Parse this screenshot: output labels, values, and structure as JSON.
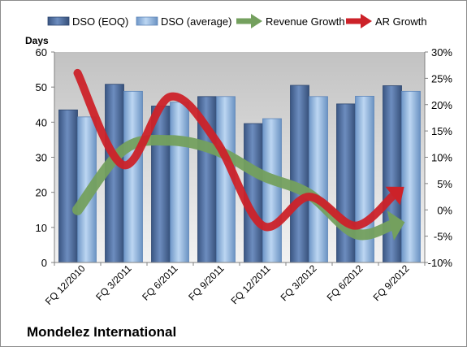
{
  "chart_data": {
    "type": "bar",
    "title": "Mondelez International",
    "ylabel": "Days",
    "ylim": [
      0,
      60
    ],
    "y2lim": [
      -10,
      30
    ],
    "yticks": [
      "0",
      "10",
      "20",
      "30",
      "40",
      "50",
      "60"
    ],
    "y2ticks": [
      "-10%",
      "-5%",
      "0%",
      "5%",
      "10%",
      "15%",
      "20%",
      "25%",
      "30%"
    ],
    "categories": [
      "FQ 12/2010",
      "FQ 3/2011",
      "FQ 6/2011",
      "FQ 9/2011",
      "FQ 12/2011",
      "FQ 3/2012",
      "FQ 6/2012",
      "FQ 9/2012"
    ],
    "legend_position": "top",
    "grid": false,
    "series": [
      {
        "name": "DSO (EOQ)",
        "kind": "bar",
        "axis": "left",
        "color": "#4a6a9c",
        "values": [
          43.5,
          50.8,
          44.6,
          47.3,
          39.6,
          50.5,
          45.2,
          50.4
        ]
      },
      {
        "name": "DSO (average)",
        "kind": "bar",
        "axis": "left",
        "color": "#8fb4de",
        "values": [
          41.5,
          48.8,
          45.7,
          47.3,
          41.0,
          47.3,
          47.4,
          48.8
        ]
      },
      {
        "name": "Revenue Growth",
        "kind": "arrow-line",
        "axis": "right",
        "color": "#74a05e",
        "values": [
          0,
          11.5,
          13.2,
          11.3,
          6.5,
          3.0,
          -4.5,
          -2.5
        ]
      },
      {
        "name": "AR Growth",
        "kind": "arrow-line",
        "axis": "right",
        "color": "#cc2229",
        "values": [
          26,
          8.5,
          21.5,
          13.0,
          -3.0,
          2.5,
          -3.0,
          4.0
        ]
      }
    ]
  }
}
